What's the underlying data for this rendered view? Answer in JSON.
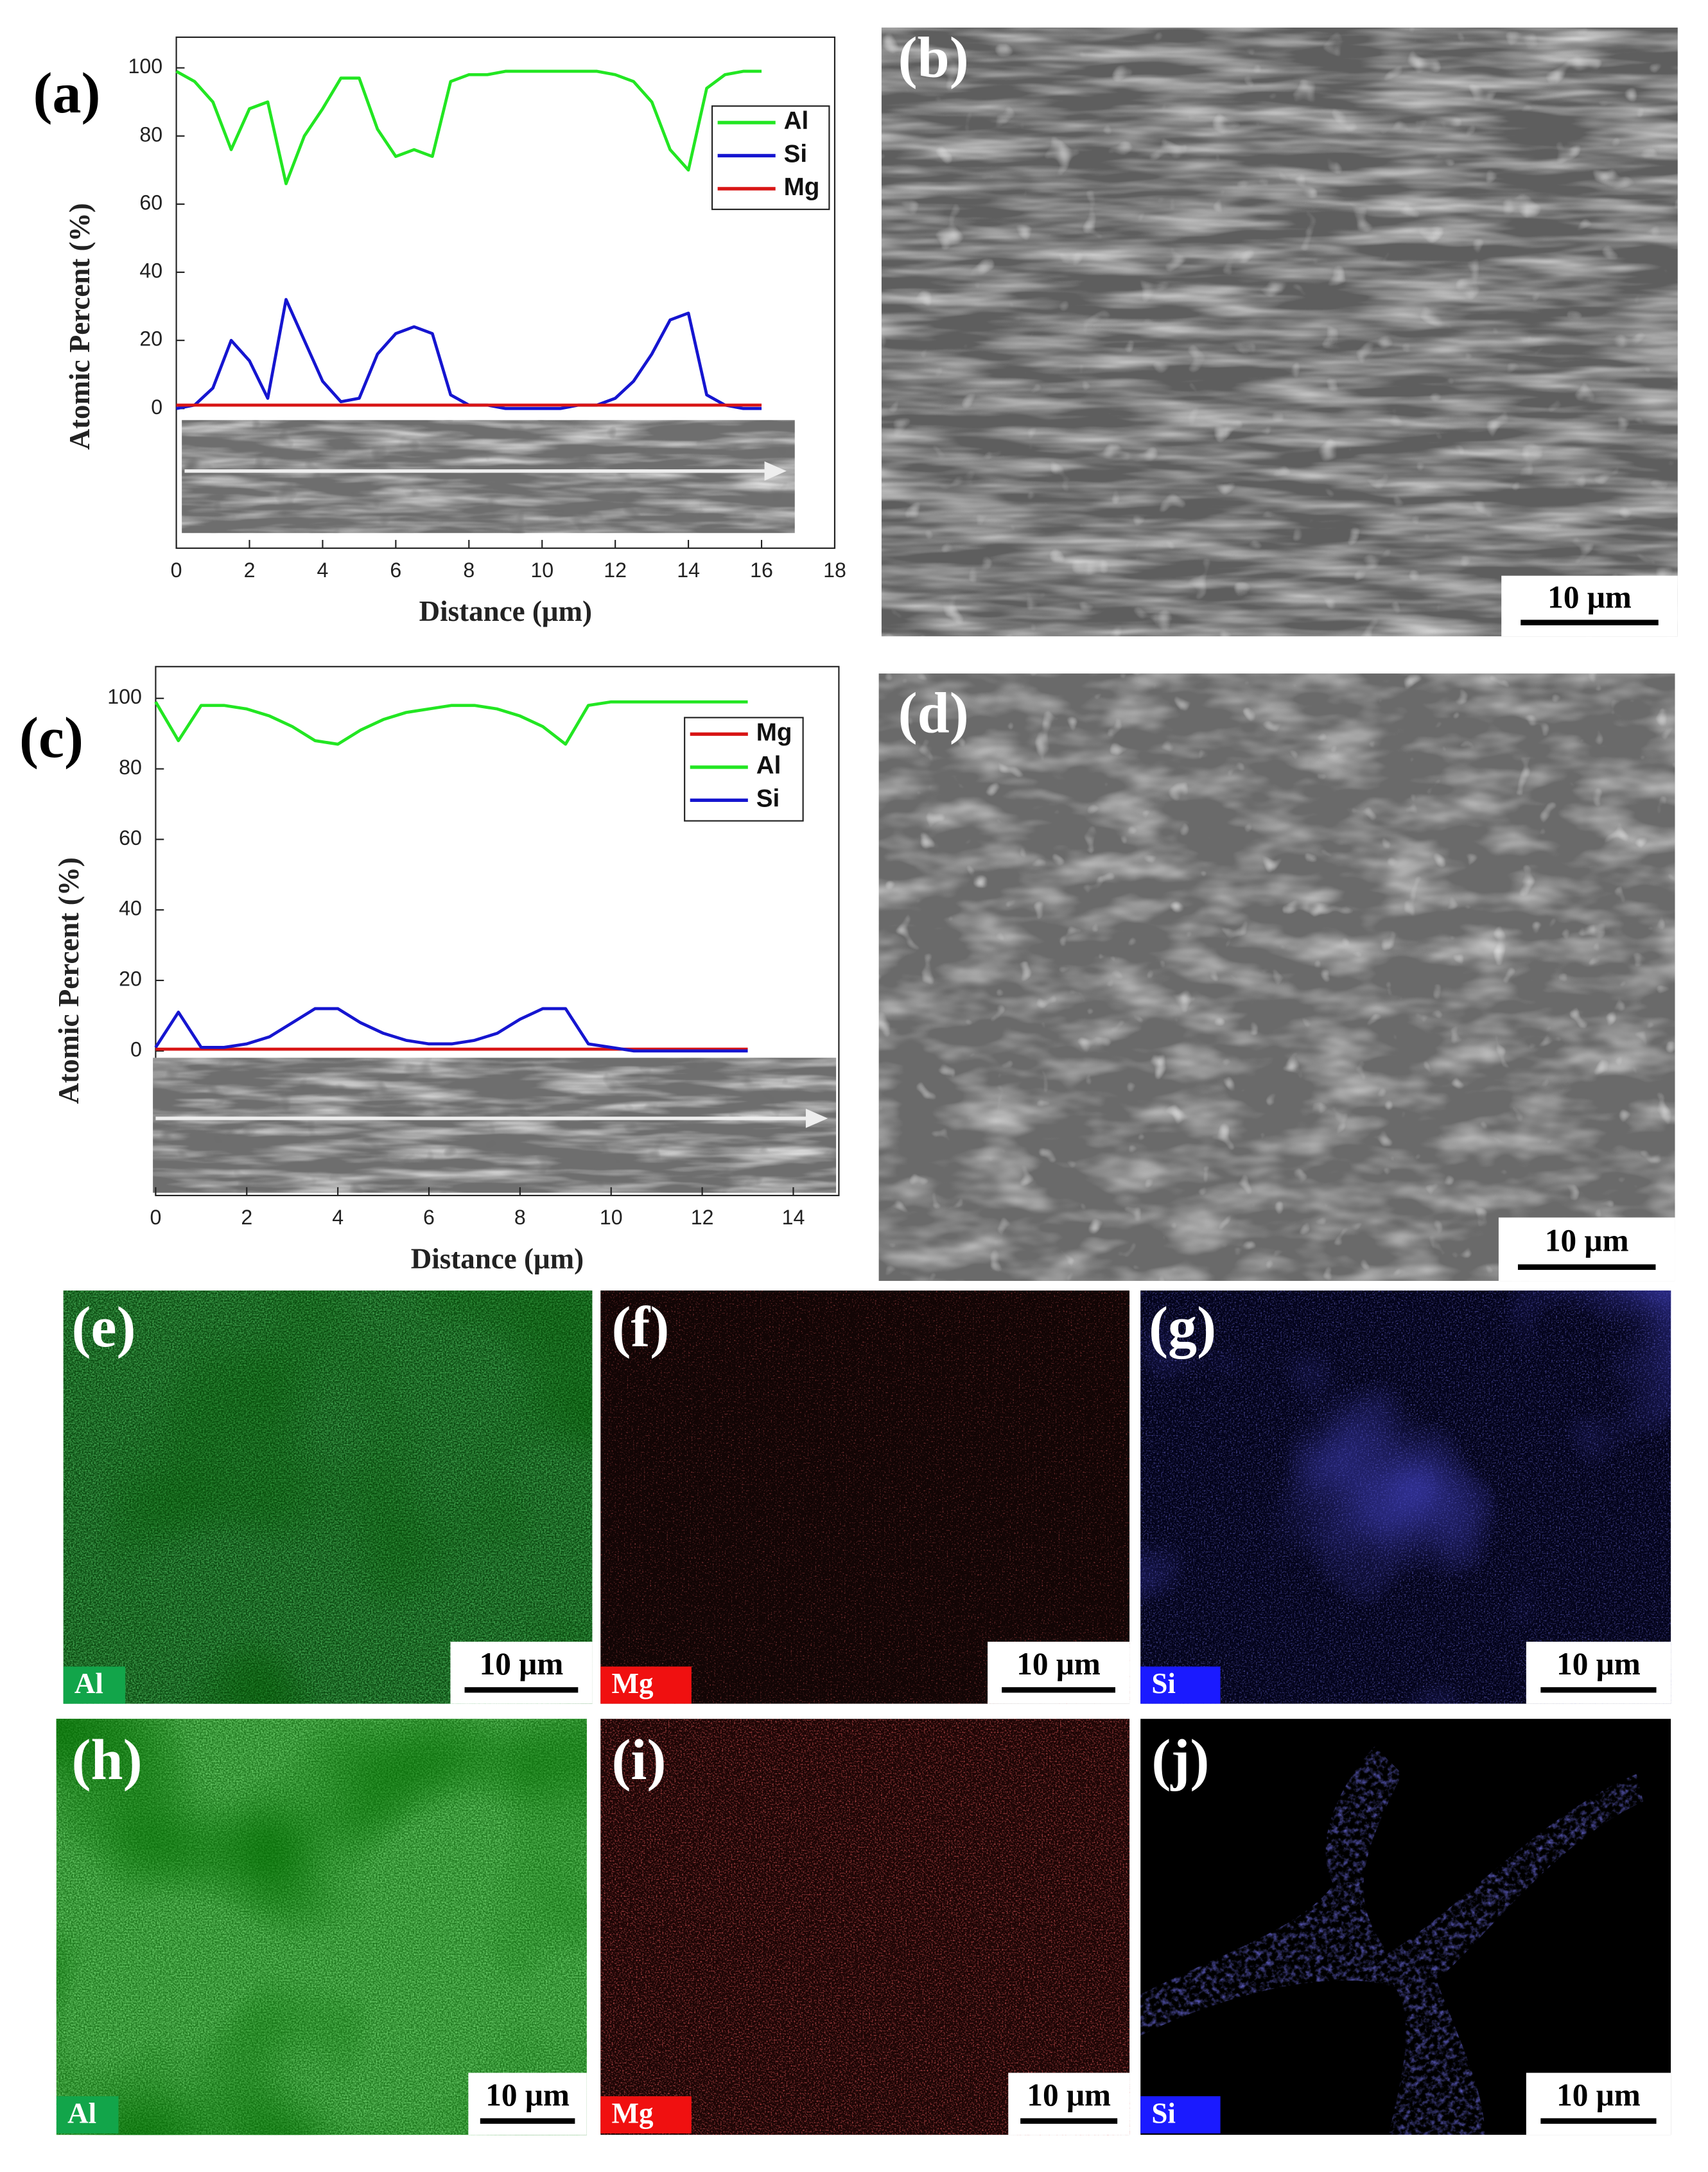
{
  "chart_data": [
    {
      "type": "line",
      "panel_label": "(a)",
      "x_label": "Distance (μm)",
      "y_label": "Atomic Percent (%)",
      "x": [
        0,
        0.5,
        1,
        1.5,
        2,
        2.5,
        3,
        3.5,
        4,
        4.5,
        5,
        5.5,
        6,
        6.5,
        7,
        7.5,
        8,
        8.5,
        9,
        9.5,
        10,
        10.5,
        11,
        11.5,
        12,
        12.5,
        13,
        13.5,
        14,
        14.5,
        15,
        15.5,
        16
      ],
      "series": [
        {
          "name": "Al",
          "color": "#22e622",
          "values": [
            99,
            96,
            90,
            76,
            88,
            90,
            66,
            80,
            88,
            97,
            97,
            82,
            74,
            76,
            74,
            96,
            98,
            98,
            99,
            99,
            99,
            99,
            99,
            99,
            98,
            96,
            90,
            76,
            70,
            94,
            98,
            99,
            99
          ]
        },
        {
          "name": "Si",
          "color": "#1515d0",
          "values": [
            0,
            1,
            6,
            20,
            14,
            3,
            32,
            20,
            8,
            2,
            3,
            16,
            22,
            24,
            22,
            4,
            1,
            1,
            0,
            0,
            0,
            0,
            1,
            1,
            3,
            8,
            16,
            26,
            28,
            4,
            1,
            0,
            0
          ]
        },
        {
          "name": "Mg",
          "color": "#d81515",
          "values": [
            1,
            1,
            1,
            1,
            1,
            1,
            1,
            1,
            1,
            1,
            1,
            1,
            1,
            1,
            1,
            1,
            1,
            1,
            1,
            1,
            1,
            1,
            1,
            1,
            1,
            1,
            1,
            1,
            1,
            1,
            1,
            1,
            1
          ]
        }
      ],
      "xlim": [
        0,
        18
      ],
      "xticks": [
        0,
        2,
        4,
        6,
        8,
        10,
        12,
        14,
        16,
        18
      ],
      "ylim": [
        -41,
        109
      ],
      "yticks": [
        0,
        20,
        40,
        60,
        80,
        100
      ]
    },
    {
      "type": "line",
      "panel_label": "(c)",
      "x_label": "Distance (μm)",
      "y_label": "Atomic Percent (%)",
      "x": [
        0,
        0.5,
        1,
        1.5,
        2,
        2.5,
        3,
        3.5,
        4,
        4.5,
        5,
        5.5,
        6,
        6.5,
        7,
        7.5,
        8,
        8.5,
        9,
        9.5,
        10,
        10.5,
        11,
        11.5,
        12,
        12.5,
        13
      ],
      "series": [
        {
          "name": "Mg",
          "color": "#d81515",
          "values": [
            0.5,
            0.5,
            0.5,
            0.5,
            0.5,
            0.5,
            0.5,
            0.5,
            0.5,
            0.5,
            0.5,
            0.5,
            0.5,
            0.5,
            0.5,
            0.5,
            0.5,
            0.5,
            0.5,
            0.5,
            0.5,
            0.5,
            0.5,
            0.5,
            0.5,
            0.5,
            0.5
          ]
        },
        {
          "name": "Al",
          "color": "#22e622",
          "values": [
            99,
            88,
            98,
            98,
            97,
            95,
            92,
            88,
            87,
            91,
            94,
            96,
            97,
            98,
            98,
            97,
            95,
            92,
            87,
            98,
            99,
            99,
            99,
            99,
            99,
            99,
            99
          ]
        },
        {
          "name": "Si",
          "color": "#1515d0",
          "values": [
            1,
            11,
            1,
            1,
            2,
            4,
            8,
            12,
            12,
            8,
            5,
            3,
            2,
            2,
            3,
            5,
            9,
            12,
            12,
            2,
            1,
            0,
            0,
            0,
            0,
            0,
            0
          ]
        }
      ],
      "xlim": [
        0,
        15
      ],
      "xticks": [
        0,
        2,
        4,
        6,
        8,
        10,
        12,
        14
      ],
      "ylim": [
        -41,
        109
      ],
      "yticks": [
        0,
        20,
        40,
        60,
        80,
        100
      ]
    }
  ],
  "panels": [
    {
      "label": "(b)",
      "scale_bar": "10 μm"
    },
    {
      "label": "(d)",
      "scale_bar": "10 μm"
    },
    {
      "label": "(e)",
      "scale_bar": "10 μm",
      "element": "Al"
    },
    {
      "label": "(f)",
      "scale_bar": "10 μm",
      "element": "Mg"
    },
    {
      "label": "(g)",
      "scale_bar": "10 μm",
      "element": "Si"
    },
    {
      "label": "(h)",
      "scale_bar": "10 μm",
      "element": "Al"
    },
    {
      "label": "(i)",
      "scale_bar": "10 μm",
      "element": "Mg"
    },
    {
      "label": "(j)",
      "scale_bar": "10 μm",
      "element": "Si"
    }
  ]
}
